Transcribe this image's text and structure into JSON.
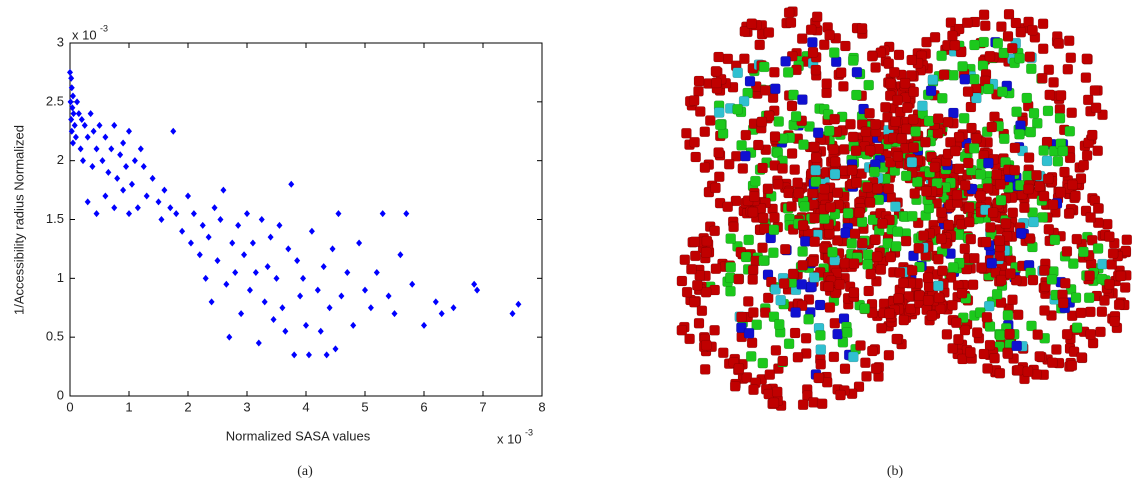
{
  "chart_data": {
    "type": "scatter",
    "xlabel": "Normalized SASA values",
    "ylabel": "1/Accessibility radius Normalized",
    "multiplier": "x 10",
    "multiplier_exponent": "-3",
    "color": "#0000ff",
    "xlim": [
      0,
      8
    ],
    "xticks": [
      0,
      1,
      2,
      3,
      4,
      5,
      6,
      7,
      8
    ],
    "ylim": [
      0,
      3
    ],
    "yticks": [
      0,
      0.5,
      1,
      1.5,
      2,
      2.5,
      3
    ],
    "x": [
      0.0,
      0.02,
      0.03,
      0.05,
      0.01,
      0.04,
      0.06,
      0.02,
      0.08,
      0.03,
      0.1,
      0.05,
      0.12,
      0.15,
      0.2,
      0.18,
      0.25,
      0.3,
      0.22,
      0.35,
      0.4,
      0.45,
      0.5,
      0.38,
      0.55,
      0.6,
      0.65,
      0.7,
      0.75,
      0.8,
      0.85,
      0.9,
      0.95,
      1.0,
      1.05,
      1.1,
      1.2,
      0.3,
      0.45,
      0.6,
      0.75,
      0.9,
      1.0,
      1.15,
      1.25,
      1.3,
      1.4,
      1.5,
      1.55,
      1.6,
      1.7,
      1.75,
      1.8,
      1.9,
      2.0,
      2.05,
      2.1,
      2.2,
      2.25,
      2.3,
      2.35,
      2.4,
      2.45,
      2.5,
      2.55,
      2.6,
      2.65,
      2.7,
      2.75,
      2.8,
      2.85,
      2.9,
      2.95,
      3.0,
      3.05,
      3.1,
      3.15,
      3.2,
      3.25,
      3.3,
      3.35,
      3.4,
      3.45,
      3.5,
      3.55,
      3.6,
      3.65,
      3.7,
      3.75,
      3.8,
      3.85,
      3.9,
      3.95,
      4.0,
      4.05,
      4.1,
      4.2,
      4.25,
      4.3,
      4.35,
      4.4,
      4.45,
      4.5,
      4.55,
      4.6,
      4.7,
      4.8,
      4.9,
      5.0,
      5.1,
      5.2,
      5.3,
      5.4,
      5.5,
      5.6,
      5.7,
      5.8,
      6.0,
      6.2,
      6.3,
      6.5,
      6.85,
      6.9,
      7.5,
      7.6
    ],
    "values": [
      2.75,
      2.7,
      2.62,
      2.55,
      2.5,
      2.45,
      2.4,
      2.35,
      2.3,
      2.25,
      2.2,
      2.15,
      2.5,
      2.4,
      2.35,
      2.1,
      2.3,
      2.2,
      2.0,
      2.4,
      2.25,
      2.1,
      2.3,
      1.95,
      2.0,
      2.2,
      1.9,
      2.1,
      2.3,
      1.85,
      2.05,
      2.15,
      1.95,
      2.25,
      1.8,
      2.0,
      2.1,
      1.65,
      1.55,
      1.7,
      1.6,
      1.75,
      1.55,
      1.6,
      1.95,
      1.7,
      1.85,
      1.65,
      1.5,
      1.75,
      1.6,
      2.25,
      1.55,
      1.4,
      1.7,
      1.3,
      1.55,
      1.2,
      1.45,
      1.0,
      1.35,
      0.8,
      1.6,
      1.15,
      1.5,
      1.75,
      0.95,
      0.5,
      1.3,
      1.05,
      1.45,
      0.7,
      1.2,
      1.55,
      0.9,
      1.3,
      1.05,
      0.45,
      1.5,
      0.8,
      1.1,
      1.35,
      0.65,
      1.0,
      1.45,
      0.75,
      0.55,
      1.25,
      1.8,
      0.35,
      1.15,
      0.85,
      1.0,
      0.6,
      0.35,
      1.4,
      0.9,
      0.55,
      1.1,
      0.35,
      0.75,
      1.25,
      0.4,
      1.55,
      0.85,
      1.05,
      0.6,
      1.3,
      0.9,
      0.75,
      1.05,
      1.55,
      0.85,
      0.7,
      1.2,
      1.55,
      0.95,
      0.6,
      0.8,
      0.7,
      0.75,
      0.95,
      0.9,
      0.7,
      0.78
    ]
  },
  "captions": [
    "(a)",
    "(b)"
  ]
}
